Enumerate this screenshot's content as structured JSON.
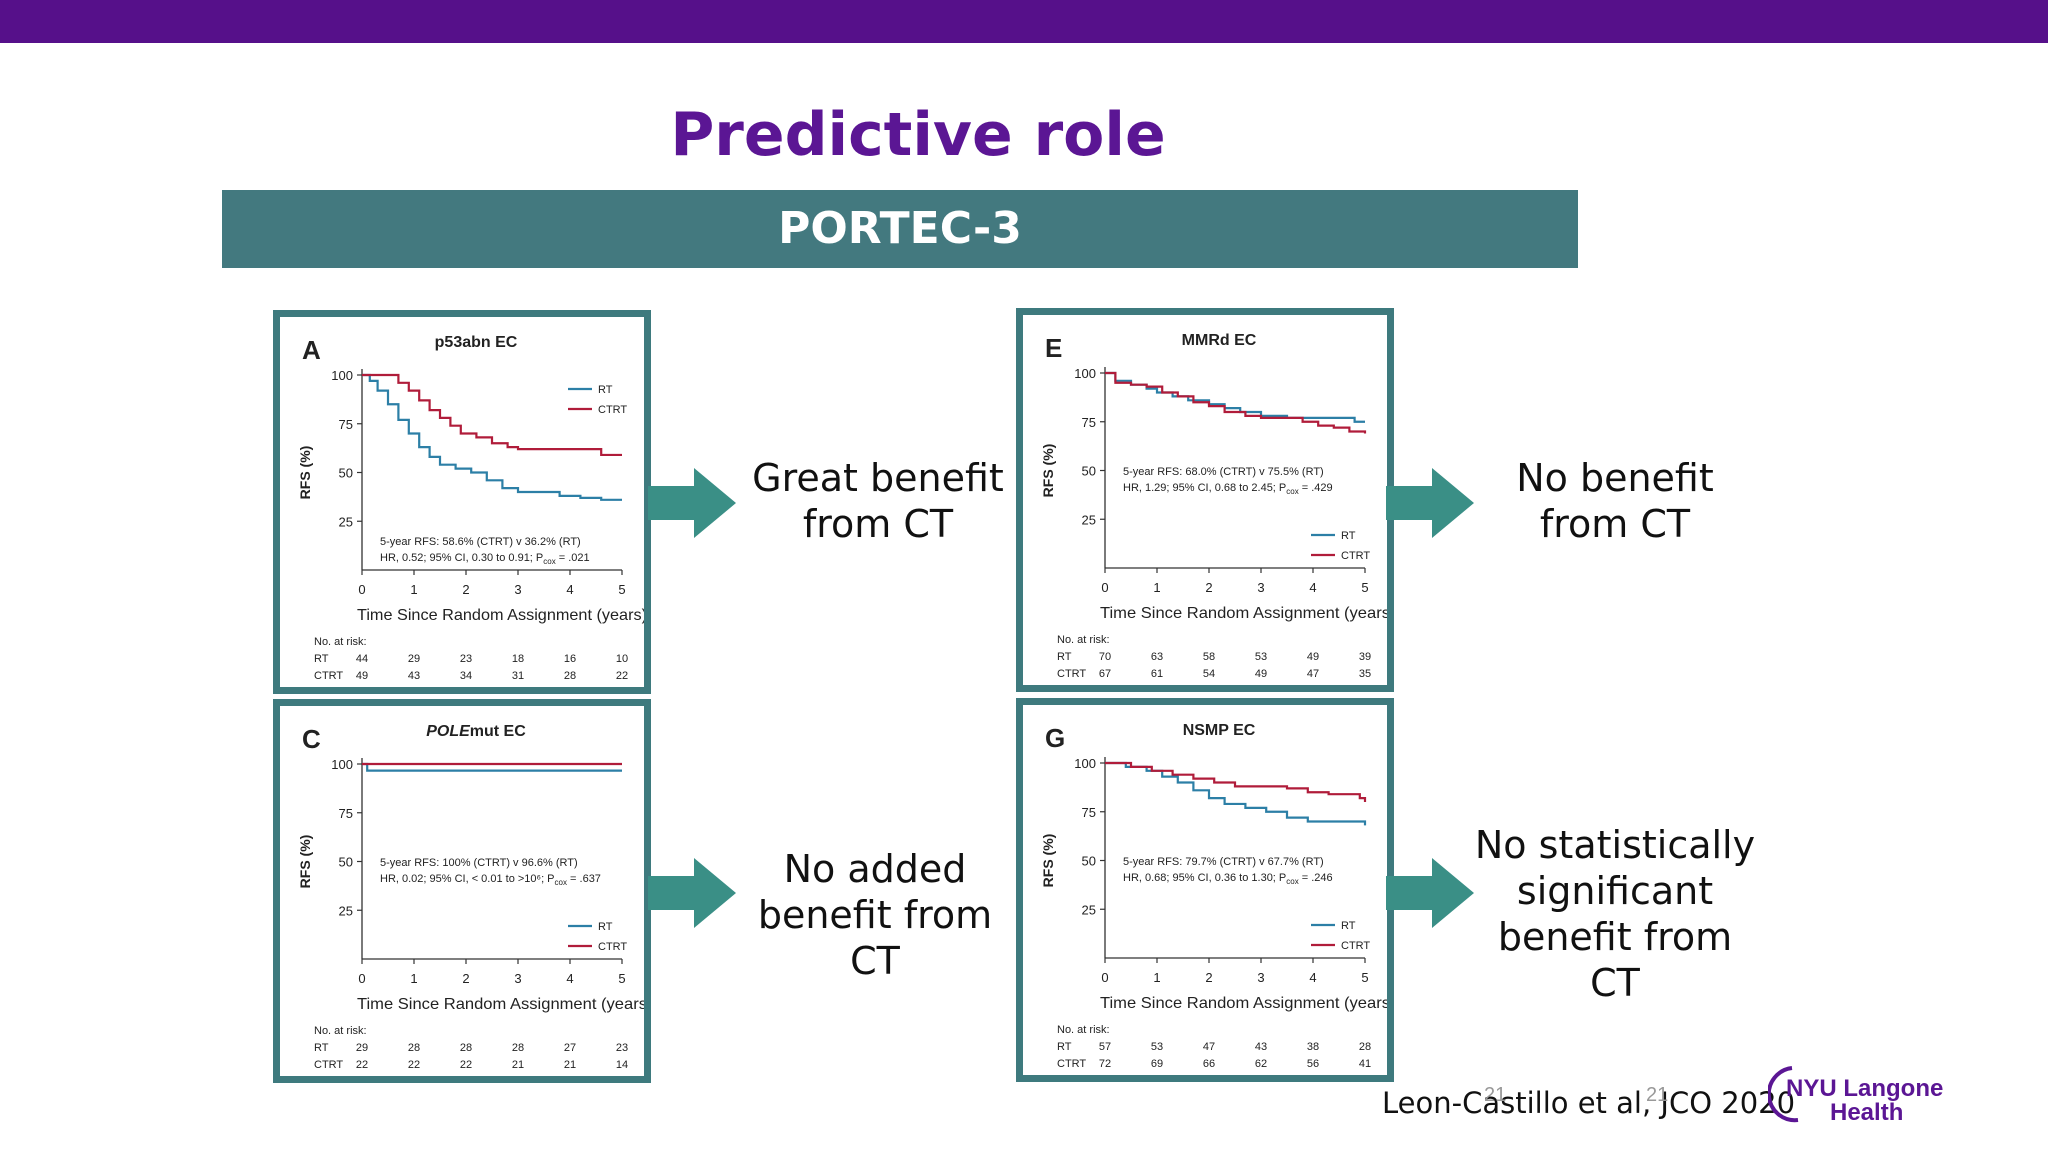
{
  "slide": {
    "title": "Predictive role",
    "banner": "PORTEC-3",
    "citation": "Leon-Castillo et al, JCO 2020",
    "page_number": "21",
    "logo": {
      "line1": "NYU Langone",
      "line2": "Health"
    }
  },
  "captions": [
    {
      "text": "Great benefit from CT"
    },
    {
      "text": "No benefit from CT"
    },
    {
      "text": "No added benefit from CT"
    },
    {
      "text": "No statistically significant benefit from CT"
    }
  ],
  "colors": {
    "rt": "#2c7fa6",
    "ctrt": "#b01c3a",
    "panel_border": "#3e7a7e",
    "arrow": "#3a8f86",
    "purple": "#5b1694"
  },
  "chart_data": [
    {
      "type": "line",
      "letter": "A",
      "title_prefix": "",
      "title_main": "p53abn EC",
      "xlabel": "Time Since Random Assignment (years)",
      "ylabel": "RFS (%)",
      "xlim": [
        0,
        5
      ],
      "ylim": [
        0,
        100
      ],
      "xticks": [
        0,
        1,
        2,
        3,
        4,
        5
      ],
      "yticks": [
        25,
        50,
        75,
        100
      ],
      "legend": [
        "RT",
        "CTRT"
      ],
      "legend_position": "top-right",
      "annotation_position": "bottom",
      "annotation": [
        "5-year RFS: 58.6% (CTRT) v 36.2% (RT)",
        "HR, 0.52; 95% CI, 0.30 to 0.91; P",
        "cox",
        " = .021"
      ],
      "series": [
        {
          "name": "RT",
          "x": [
            0,
            0.15,
            0.3,
            0.5,
            0.7,
            0.9,
            1.1,
            1.3,
            1.5,
            1.8,
            2.1,
            2.4,
            2.7,
            3.0,
            3.4,
            3.8,
            4.2,
            4.6,
            5.0
          ],
          "y": [
            100,
            97,
            92,
            85,
            77,
            70,
            63,
            58,
            54,
            52,
            50,
            46,
            42,
            40,
            40,
            38,
            37,
            36,
            36
          ]
        },
        {
          "name": "CTRT",
          "x": [
            0,
            0.4,
            0.7,
            0.9,
            1.1,
            1.3,
            1.5,
            1.7,
            1.9,
            2.2,
            2.5,
            2.8,
            3.0,
            3.5,
            4.0,
            4.4,
            4.6,
            5.0
          ],
          "y": [
            100,
            100,
            96,
            92,
            87,
            82,
            78,
            74,
            70,
            68,
            65,
            63,
            62,
            62,
            62,
            62,
            59,
            59
          ]
        }
      ],
      "at_risk": {
        "label": "No. at risk:",
        "rows": [
          {
            "arm": "RT",
            "values": [
              44,
              29,
              23,
              18,
              16,
              10
            ]
          },
          {
            "arm": "CTRT",
            "values": [
              49,
              43,
              34,
              31,
              28,
              22
            ]
          }
        ]
      }
    },
    {
      "type": "line",
      "letter": "E",
      "title_prefix": "",
      "title_main": "MMRd EC",
      "xlabel": "Time Since Random Assignment (years",
      "ylabel": "RFS (%)",
      "xlim": [
        0,
        5
      ],
      "ylim": [
        0,
        100
      ],
      "xticks": [
        0,
        1,
        2,
        3,
        4,
        5
      ],
      "yticks": [
        25,
        50,
        75,
        100
      ],
      "legend": [
        "RT",
        "CTRT"
      ],
      "legend_position": "bottom-right",
      "annotation_position": "middle",
      "annotation": [
        "5-year RFS: 68.0% (CTRT) v 75.5% (RT)",
        "HR, 1.29; 95% CI, 0.68 to 2.45; P",
        "cox",
        " = .429"
      ],
      "series": [
        {
          "name": "RT",
          "x": [
            0,
            0.2,
            0.5,
            0.8,
            1.0,
            1.3,
            1.6,
            2.0,
            2.3,
            2.6,
            3.0,
            3.5,
            4.0,
            4.5,
            4.8,
            5.0
          ],
          "y": [
            100,
            96,
            94,
            92,
            90,
            88,
            86,
            84,
            82,
            80,
            78,
            77,
            77,
            77,
            75,
            75
          ]
        },
        {
          "name": "CTRT",
          "x": [
            0,
            0.2,
            0.5,
            0.8,
            1.1,
            1.4,
            1.7,
            2.0,
            2.3,
            2.7,
            3.0,
            3.5,
            3.8,
            4.1,
            4.4,
            4.7,
            5.0
          ],
          "y": [
            100,
            95,
            94,
            93,
            90,
            88,
            85,
            83,
            80,
            78,
            77,
            77,
            75,
            73,
            72,
            70,
            69
          ]
        }
      ],
      "at_risk": {
        "label": "No. at risk:",
        "rows": [
          {
            "arm": "RT",
            "values": [
              70,
              63,
              58,
              53,
              49,
              39
            ]
          },
          {
            "arm": "CTRT",
            "values": [
              67,
              61,
              54,
              49,
              47,
              35
            ]
          }
        ]
      }
    },
    {
      "type": "line",
      "letter": "C",
      "title_prefix": "POLE",
      "title_main": "mut EC",
      "xlabel": "Time Since Random Assignment (years",
      "ylabel": "RFS (%)",
      "xlim": [
        0,
        5
      ],
      "ylim": [
        0,
        100
      ],
      "xticks": [
        0,
        1,
        2,
        3,
        4,
        5
      ],
      "yticks": [
        25,
        50,
        75,
        100
      ],
      "legend": [
        "RT",
        "CTRT"
      ],
      "legend_position": "bottom-right",
      "annotation_position": "middle",
      "annotation": [
        "5-year RFS: 100% (CTRT) v 96.6% (RT)",
        "HR, 0.02; 95% CI, < 0.01 to >10⁶; P",
        "cox",
        " = .637"
      ],
      "series": [
        {
          "name": "RT",
          "x": [
            0,
            0.1,
            5.0
          ],
          "y": [
            100,
            96.6,
            96.6
          ]
        },
        {
          "name": "CTRT",
          "x": [
            0,
            5.0
          ],
          "y": [
            100,
            100
          ]
        }
      ],
      "at_risk": {
        "label": "No. at risk:",
        "rows": [
          {
            "arm": "RT",
            "values": [
              29,
              28,
              28,
              28,
              27,
              23
            ]
          },
          {
            "arm": "CTRT",
            "values": [
              22,
              22,
              22,
              21,
              21,
              14
            ]
          }
        ]
      }
    },
    {
      "type": "line",
      "letter": "G",
      "title_prefix": "",
      "title_main": "NSMP EC",
      "xlabel": "Time Since Random Assignment (years",
      "ylabel": "RFS (%)",
      "xlim": [
        0,
        5
      ],
      "ylim": [
        0,
        100
      ],
      "xticks": [
        0,
        1,
        2,
        3,
        4,
        5
      ],
      "yticks": [
        25,
        50,
        75,
        100
      ],
      "legend": [
        "RT",
        "CTRT"
      ],
      "legend_position": "bottom-right",
      "annotation_position": "middle",
      "annotation": [
        "5-year RFS: 79.7% (CTRT) v 67.7% (RT)",
        "HR, 0.68; 95% CI, 0.36 to 1.30; P",
        "cox",
        " = .246"
      ],
      "series": [
        {
          "name": "RT",
          "x": [
            0,
            0.4,
            0.8,
            1.1,
            1.4,
            1.7,
            2.0,
            2.3,
            2.7,
            3.1,
            3.5,
            3.9,
            4.3,
            4.7,
            5.0
          ],
          "y": [
            100,
            98,
            96,
            93,
            90,
            86,
            82,
            79,
            77,
            75,
            72,
            70,
            70,
            70,
            68
          ]
        },
        {
          "name": "CTRT",
          "x": [
            0,
            0.5,
            0.9,
            1.3,
            1.7,
            2.1,
            2.5,
            3.0,
            3.5,
            3.9,
            4.3,
            4.7,
            4.9,
            5.0
          ],
          "y": [
            100,
            98,
            96,
            94,
            92,
            90,
            88,
            88,
            87,
            85,
            84,
            84,
            82,
            80
          ]
        }
      ],
      "at_risk": {
        "label": "No. at risk:",
        "rows": [
          {
            "arm": "RT",
            "values": [
              57,
              53,
              47,
              43,
              38,
              28
            ]
          },
          {
            "arm": "CTRT",
            "values": [
              72,
              69,
              66,
              62,
              56,
              41
            ]
          }
        ]
      }
    }
  ]
}
